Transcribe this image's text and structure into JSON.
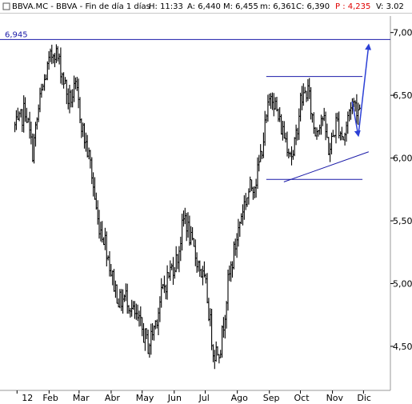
{
  "header": {
    "ticker": "BBVA.MC - BBVA - Fin de día 1 días",
    "high": "H: 11:33",
    "ask": "A: 6,440",
    "max": "M: 6,455",
    "min": "m: 6,361",
    "close": "C: 6,390",
    "pct": "P : 4,235",
    "volume": "V: 3.02"
  },
  "colors": {
    "price": "#000000",
    "trendline": "#1a1aa8",
    "arrow": "#2c40d6",
    "header_red": "#e00000"
  },
  "annotations": {
    "level_label": "6,945"
  },
  "chart_data": {
    "type": "line",
    "title": "",
    "xlabel": "",
    "ylabel": "",
    "series": [
      {
        "x": [
          "2012-01-02",
          "2012-01-09",
          "2012-01-16",
          "2012-01-23",
          "2012-01-30",
          "2012-02-06",
          "2012-02-13",
          "2012-02-20",
          "2012-02-27",
          "2012-03-05",
          "2012-03-12",
          "2012-03-19",
          "2012-03-26",
          "2012-04-02",
          "2012-04-09",
          "2012-04-16",
          "2012-04-23",
          "2012-04-30",
          "2012-05-07",
          "2012-05-14",
          "2012-05-21",
          "2012-05-28",
          "2012-06-04",
          "2012-06-11",
          "2012-06-18",
          "2012-06-25",
          "2012-07-02",
          "2012-07-09",
          "2012-07-16",
          "2012-07-23",
          "2012-07-30",
          "2012-08-06",
          "2012-08-13",
          "2012-08-20",
          "2012-08-27",
          "2012-09-03",
          "2012-09-10",
          "2012-09-17",
          "2012-09-24",
          "2012-10-01",
          "2012-10-08",
          "2012-10-15",
          "2012-10-22",
          "2012-10-29",
          "2012-11-05",
          "2012-11-12",
          "2012-11-19",
          "2012-11-26"
        ],
        "values": [
          6.25,
          6.4,
          6.05,
          6.45,
          6.7,
          6.88,
          6.7,
          6.45,
          6.55,
          6.2,
          5.95,
          5.5,
          5.35,
          5.05,
          4.85,
          4.9,
          4.75,
          4.65,
          4.5,
          4.7,
          4.95,
          5.1,
          5.2,
          5.55,
          5.3,
          5.15,
          4.95,
          4.45,
          4.5,
          5.0,
          5.3,
          5.6,
          5.75,
          5.85,
          6.2,
          6.55,
          6.3,
          6.15,
          6.0,
          6.45,
          6.55,
          6.2,
          6.35,
          6.05,
          6.3,
          6.15,
          6.45,
          6.4
        ]
      }
    ],
    "x_ticks": [
      "12",
      "Feb",
      "Mar",
      "Abr",
      "May",
      "Jun",
      "Jul",
      "Ago",
      "Sep",
      "Oct",
      "Nov",
      "Dic"
    ],
    "y_ticks": [
      "7,00",
      "6,50",
      "6,00",
      "5,50",
      "5,00",
      "4,50"
    ],
    "ylim": [
      4.2,
      7.1
    ],
    "grid": false,
    "lines": [
      {
        "kind": "horizontal",
        "y": 6.945
      },
      {
        "kind": "horizontal",
        "y": 6.65,
        "from": "2012-08-29",
        "to": "2012-11-30"
      },
      {
        "kind": "horizontal",
        "y": 5.83,
        "from": "2012-08-29",
        "to": "2012-11-30"
      },
      {
        "kind": "trend",
        "from": [
          "2012-09-15",
          5.81
        ],
        "to": [
          "2012-12-06",
          6.05
        ]
      }
    ],
    "arrows": [
      {
        "from": [
          "2012-11-20",
          6.45
        ],
        "to": [
          "2012-11-26",
          6.18
        ]
      },
      {
        "from": [
          "2012-11-26",
          6.18
        ],
        "to": [
          "2012-12-06",
          6.9
        ]
      }
    ]
  }
}
